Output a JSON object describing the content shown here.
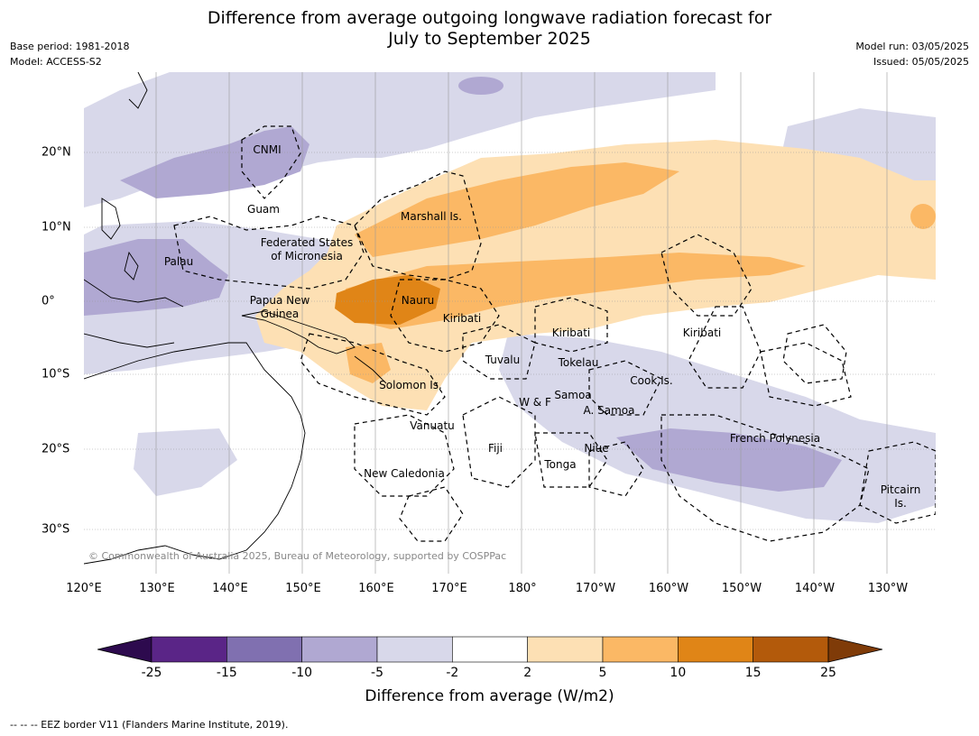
{
  "title": {
    "line1": "Difference from average outgoing longwave radiation forecast for",
    "line2": "July to September 2025"
  },
  "meta_left": {
    "base_period": "Base period: 1981-2018",
    "model": "Model: ACCESS-S2"
  },
  "meta_right": {
    "model_run": "Model run: 03/05/2025",
    "issued": "Issued: 05/05/2025"
  },
  "map": {
    "lon_ticks": [
      "120°E",
      "130°E",
      "140°E",
      "150°E",
      "160°E",
      "170°E",
      "180°",
      "170°W",
      "160°W",
      "150°W",
      "140°W",
      "130°W"
    ],
    "lat_ticks": [
      "20°N",
      "10°N",
      "0°",
      "10°S",
      "20°S",
      "30°S"
    ],
    "region_labels": [
      {
        "id": "cnmi",
        "text": "CNMI"
      },
      {
        "id": "guam",
        "text": "Guam"
      },
      {
        "id": "marshall",
        "text": "Marshall Is."
      },
      {
        "id": "fsm1",
        "text": "Federated States"
      },
      {
        "id": "fsm2",
        "text": "of Micronesia"
      },
      {
        "id": "palau",
        "text": "Palau"
      },
      {
        "id": "png1",
        "text": "Papua New"
      },
      {
        "id": "png2",
        "text": "Guinea"
      },
      {
        "id": "nauru",
        "text": "Nauru"
      },
      {
        "id": "kiribati1",
        "text": "Kiribati"
      },
      {
        "id": "kiribati2",
        "text": "Kiribati"
      },
      {
        "id": "kiribati3",
        "text": "Kiribati"
      },
      {
        "id": "tuvalu",
        "text": "Tuvalu"
      },
      {
        "id": "tokelau",
        "text": "Tokelau"
      },
      {
        "id": "solomon",
        "text": "Solomon Is."
      },
      {
        "id": "cook",
        "text": "Cook Is."
      },
      {
        "id": "samoa",
        "text": "Samoa"
      },
      {
        "id": "wf",
        "text": "W & F"
      },
      {
        "id": "asamoa",
        "text": "A. Samoa"
      },
      {
        "id": "vanuatu",
        "text": "Vanuatu"
      },
      {
        "id": "fiji",
        "text": "Fiji"
      },
      {
        "id": "niue",
        "text": "Niue"
      },
      {
        "id": "frpoly",
        "text": "French Polynesia"
      },
      {
        "id": "tonga",
        "text": "Tonga"
      },
      {
        "id": "newcal",
        "text": "New Caledonia"
      },
      {
        "id": "pitcairn1",
        "text": "Pitcairn"
      },
      {
        "id": "pitcairn2",
        "text": "Is."
      }
    ],
    "copyright": "© Commonwealth of Australia 2025, Bureau of Meteorology, supported by COSPPac"
  },
  "colorbar": {
    "ticks": [
      "-25",
      "-15",
      "-10",
      "-5",
      "-2",
      "2",
      "5",
      "10",
      "15",
      "25"
    ],
    "colors": [
      "#2d0a4e",
      "#5a2587",
      "#8070b0",
      "#b0a8d2",
      "#d8d8ea",
      "#ffffff",
      "#fde0b4",
      "#fbb865",
      "#e08517",
      "#b35a0b",
      "#7f3b08"
    ],
    "title": "Difference from average (W/m2)"
  },
  "footer": "--  --  -- EEZ border V11 (Flanders Marine Institute, 2019)."
}
